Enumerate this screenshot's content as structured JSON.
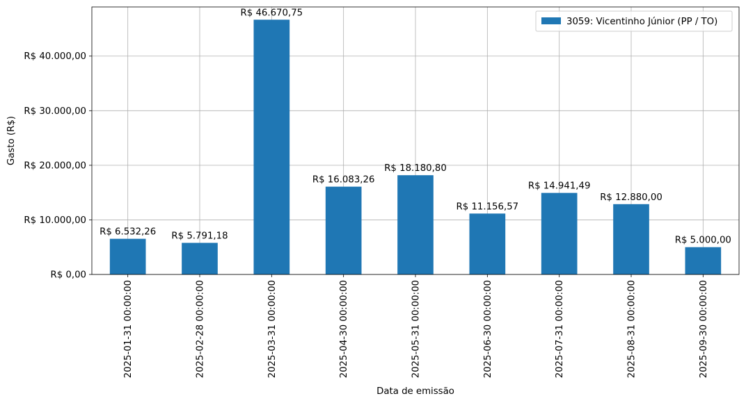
{
  "chart_data": {
    "type": "bar",
    "categories": [
      "2025-01-31 00:00:00",
      "2025-02-28 00:00:00",
      "2025-03-31 00:00:00",
      "2025-04-30 00:00:00",
      "2025-05-31 00:00:00",
      "2025-06-30 00:00:00",
      "2025-07-31 00:00:00",
      "2025-08-31 00:00:00",
      "2025-09-30 00:00:00"
    ],
    "series": [
      {
        "name": "3059: Vicentinho Júnior (PP / TO)",
        "color": "#1f77b4",
        "values": [
          6532.26,
          5791.18,
          46670.75,
          16083.26,
          18180.8,
          11156.57,
          14941.49,
          12880.0,
          5000.0
        ],
        "value_labels": [
          "R$ 6.532,26",
          "R$ 5.791,18",
          "R$ 46.670,75",
          "R$ 16.083,26",
          "R$ 18.180,80",
          "R$ 11.156,57",
          "R$ 14.941,49",
          "R$ 12.880,00",
          "R$ 5.000,00"
        ]
      }
    ],
    "xlabel": "Data de emissão",
    "ylabel": "Gasto (R$)",
    "ylim": [
      0,
      49004.29
    ],
    "yticks": [
      0,
      10000,
      20000,
      30000,
      40000
    ],
    "ytick_labels": [
      "R$ 0,00",
      "R$ 10.000,00",
      "R$ 20.000,00",
      "R$ 30.000,00",
      "R$ 40.000,00"
    ],
    "grid": true,
    "legend_position": "top-right"
  }
}
